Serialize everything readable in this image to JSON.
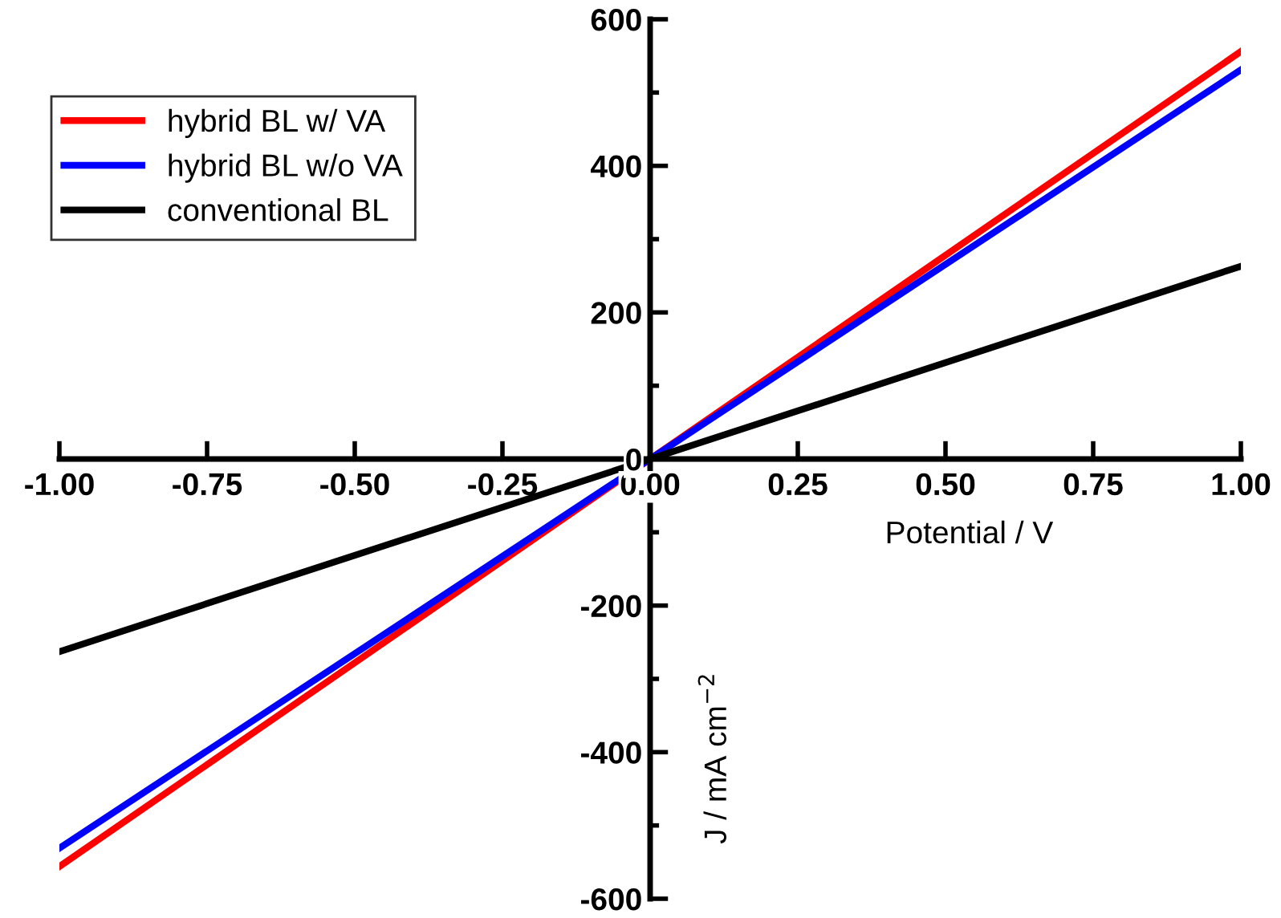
{
  "chart_data": {
    "type": "line",
    "xlabel": "Potential / V",
    "ylabel": "J / mA cm$^{−2}$",
    "x": [
      -1,
      0,
      1
    ],
    "series": [
      {
        "name": "hybrid BL w/ VA",
        "color": "#ff0000",
        "values": [
          -556,
          0,
          556
        ]
      },
      {
        "name": "hybrid BL w/o VA",
        "color": "#0000ff",
        "values": [
          -531,
          0,
          531
        ]
      },
      {
        "name": "conventional BL",
        "color": "#000000",
        "values": [
          -263,
          0,
          263
        ]
      }
    ],
    "xlim": [
      -1,
      1
    ],
    "ylim": [
      -600,
      600
    ],
    "xticks": [
      {
        "value": -1,
        "label": "-1.00"
      },
      {
        "value": -0.75,
        "label": "-0.75"
      },
      {
        "value": -0.5,
        "label": "-0.50"
      },
      {
        "value": -0.25,
        "label": "-0.25"
      },
      {
        "value": 0,
        "label": "0.00"
      },
      {
        "value": 0.25,
        "label": "0.25"
      },
      {
        "value": 0.5,
        "label": "0.50"
      },
      {
        "value": 0.75,
        "label": "0.75"
      },
      {
        "value": 1,
        "label": "1.00"
      }
    ],
    "yticks": [
      -600,
      {
        "value": -500,
        "label": null
      },
      -400,
      {
        "value": -300,
        "label": null
      },
      -200,
      {
        "value": -100,
        "label": null
      },
      0,
      {
        "value": 100,
        "label": null
      },
      200,
      {
        "value": 300,
        "label": null
      },
      400,
      {
        "value": 500,
        "label": null
      },
      600
    ],
    "grid": false,
    "legend": "top left",
    "marker": "none",
    "line_style": "solid"
  }
}
